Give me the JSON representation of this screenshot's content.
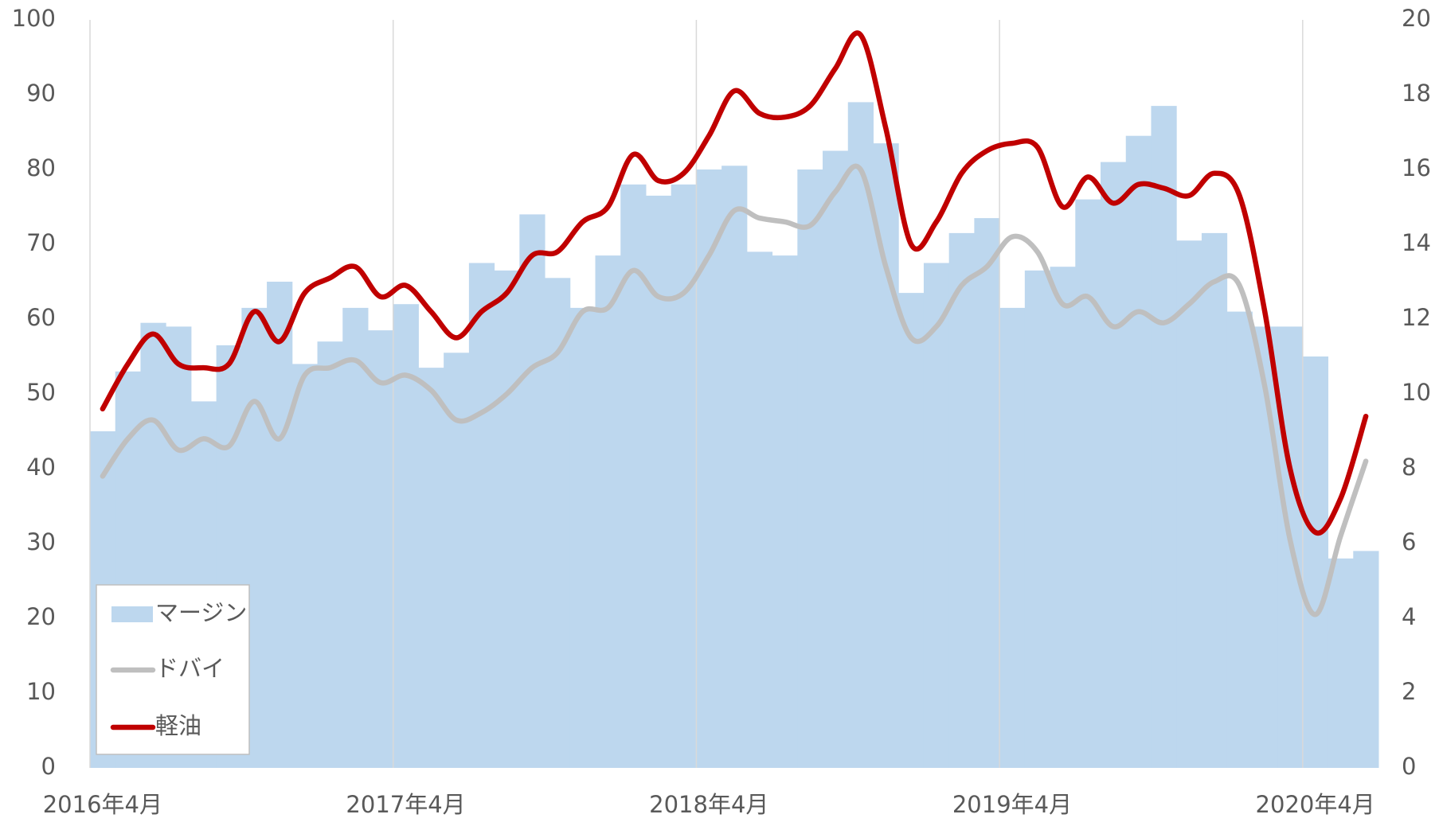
{
  "chart_data": {
    "type": "bar",
    "categories": [
      "2016年4月",
      null,
      null,
      null,
      null,
      null,
      null,
      null,
      null,
      null,
      null,
      null,
      "2017年4月",
      null,
      null,
      null,
      null,
      null,
      null,
      null,
      null,
      null,
      null,
      null,
      "2018年4月",
      null,
      null,
      null,
      null,
      null,
      null,
      null,
      null,
      null,
      null,
      null,
      "2019年4月",
      null,
      null,
      null,
      null,
      null,
      null,
      null,
      null,
      null,
      null,
      null,
      "2020年4月",
      null,
      null
    ],
    "series": [
      {
        "name": "マージン",
        "type": "bar",
        "axis": "y",
        "color": "#bdd7ee",
        "values": [
          45,
          53,
          59.5,
          59,
          49,
          56.5,
          61.5,
          65,
          54,
          57,
          61.5,
          58.5,
          62,
          53.5,
          55.5,
          67.5,
          66.5,
          74,
          65.5,
          61.5,
          68.5,
          78,
          76.5,
          78,
          80,
          80.5,
          69,
          68.5,
          80,
          82.5,
          89,
          83.5,
          63.5,
          67.5,
          71.5,
          73.5,
          61.5,
          66.5,
          67,
          76,
          81,
          84.5,
          88.5,
          70.5,
          71.5,
          61,
          59,
          59,
          55,
          28,
          29
        ]
      },
      {
        "name": "ドバイ",
        "type": "line",
        "axis": "y2",
        "color": "#bfbfbf",
        "values": [
          7.8,
          8.8,
          9.3,
          8.5,
          8.8,
          8.6,
          9.8,
          8.8,
          10.5,
          10.7,
          10.9,
          10.3,
          10.5,
          10.1,
          9.3,
          9.5,
          10.0,
          10.7,
          11.1,
          12.2,
          12.3,
          13.3,
          12.6,
          12.7,
          13.7,
          14.9,
          14.7,
          14.6,
          14.5,
          15.4,
          16.0,
          13.4,
          11.5,
          11.8,
          12.9,
          13.4,
          14.2,
          13.8,
          12.4,
          12.6,
          11.8,
          12.2,
          11.9,
          12.4,
          13.0,
          12.9,
          10.2,
          6.1,
          4.1,
          6.2,
          8.2
        ]
      },
      {
        "name": "軽油",
        "type": "line",
        "axis": "y2",
        "color": "#c00000",
        "values": [
          9.6,
          10.8,
          11.6,
          10.8,
          10.7,
          10.8,
          12.2,
          11.4,
          12.7,
          13.1,
          13.4,
          12.6,
          12.9,
          12.2,
          11.5,
          12.2,
          12.7,
          13.7,
          13.8,
          14.6,
          15.0,
          16.4,
          15.7,
          15.9,
          16.9,
          18.1,
          17.5,
          17.4,
          17.7,
          18.7,
          19.6,
          17.1,
          14.0,
          14.6,
          15.9,
          16.5,
          16.7,
          16.6,
          15.0,
          15.8,
          15.1,
          15.6,
          15.5,
          15.3,
          15.9,
          15.3,
          12.2,
          8.0,
          6.3,
          7.2,
          9.4
        ]
      }
    ],
    "ylim": [
      0,
      100
    ],
    "yticks": [
      0,
      10,
      20,
      30,
      40,
      50,
      60,
      70,
      80,
      90,
      100
    ],
    "y2lim": [
      0,
      20
    ],
    "y2ticks": [
      0,
      2,
      4,
      6,
      8,
      10,
      12,
      14,
      16,
      18,
      20
    ],
    "xgrid": true,
    "legend": "lower left"
  }
}
